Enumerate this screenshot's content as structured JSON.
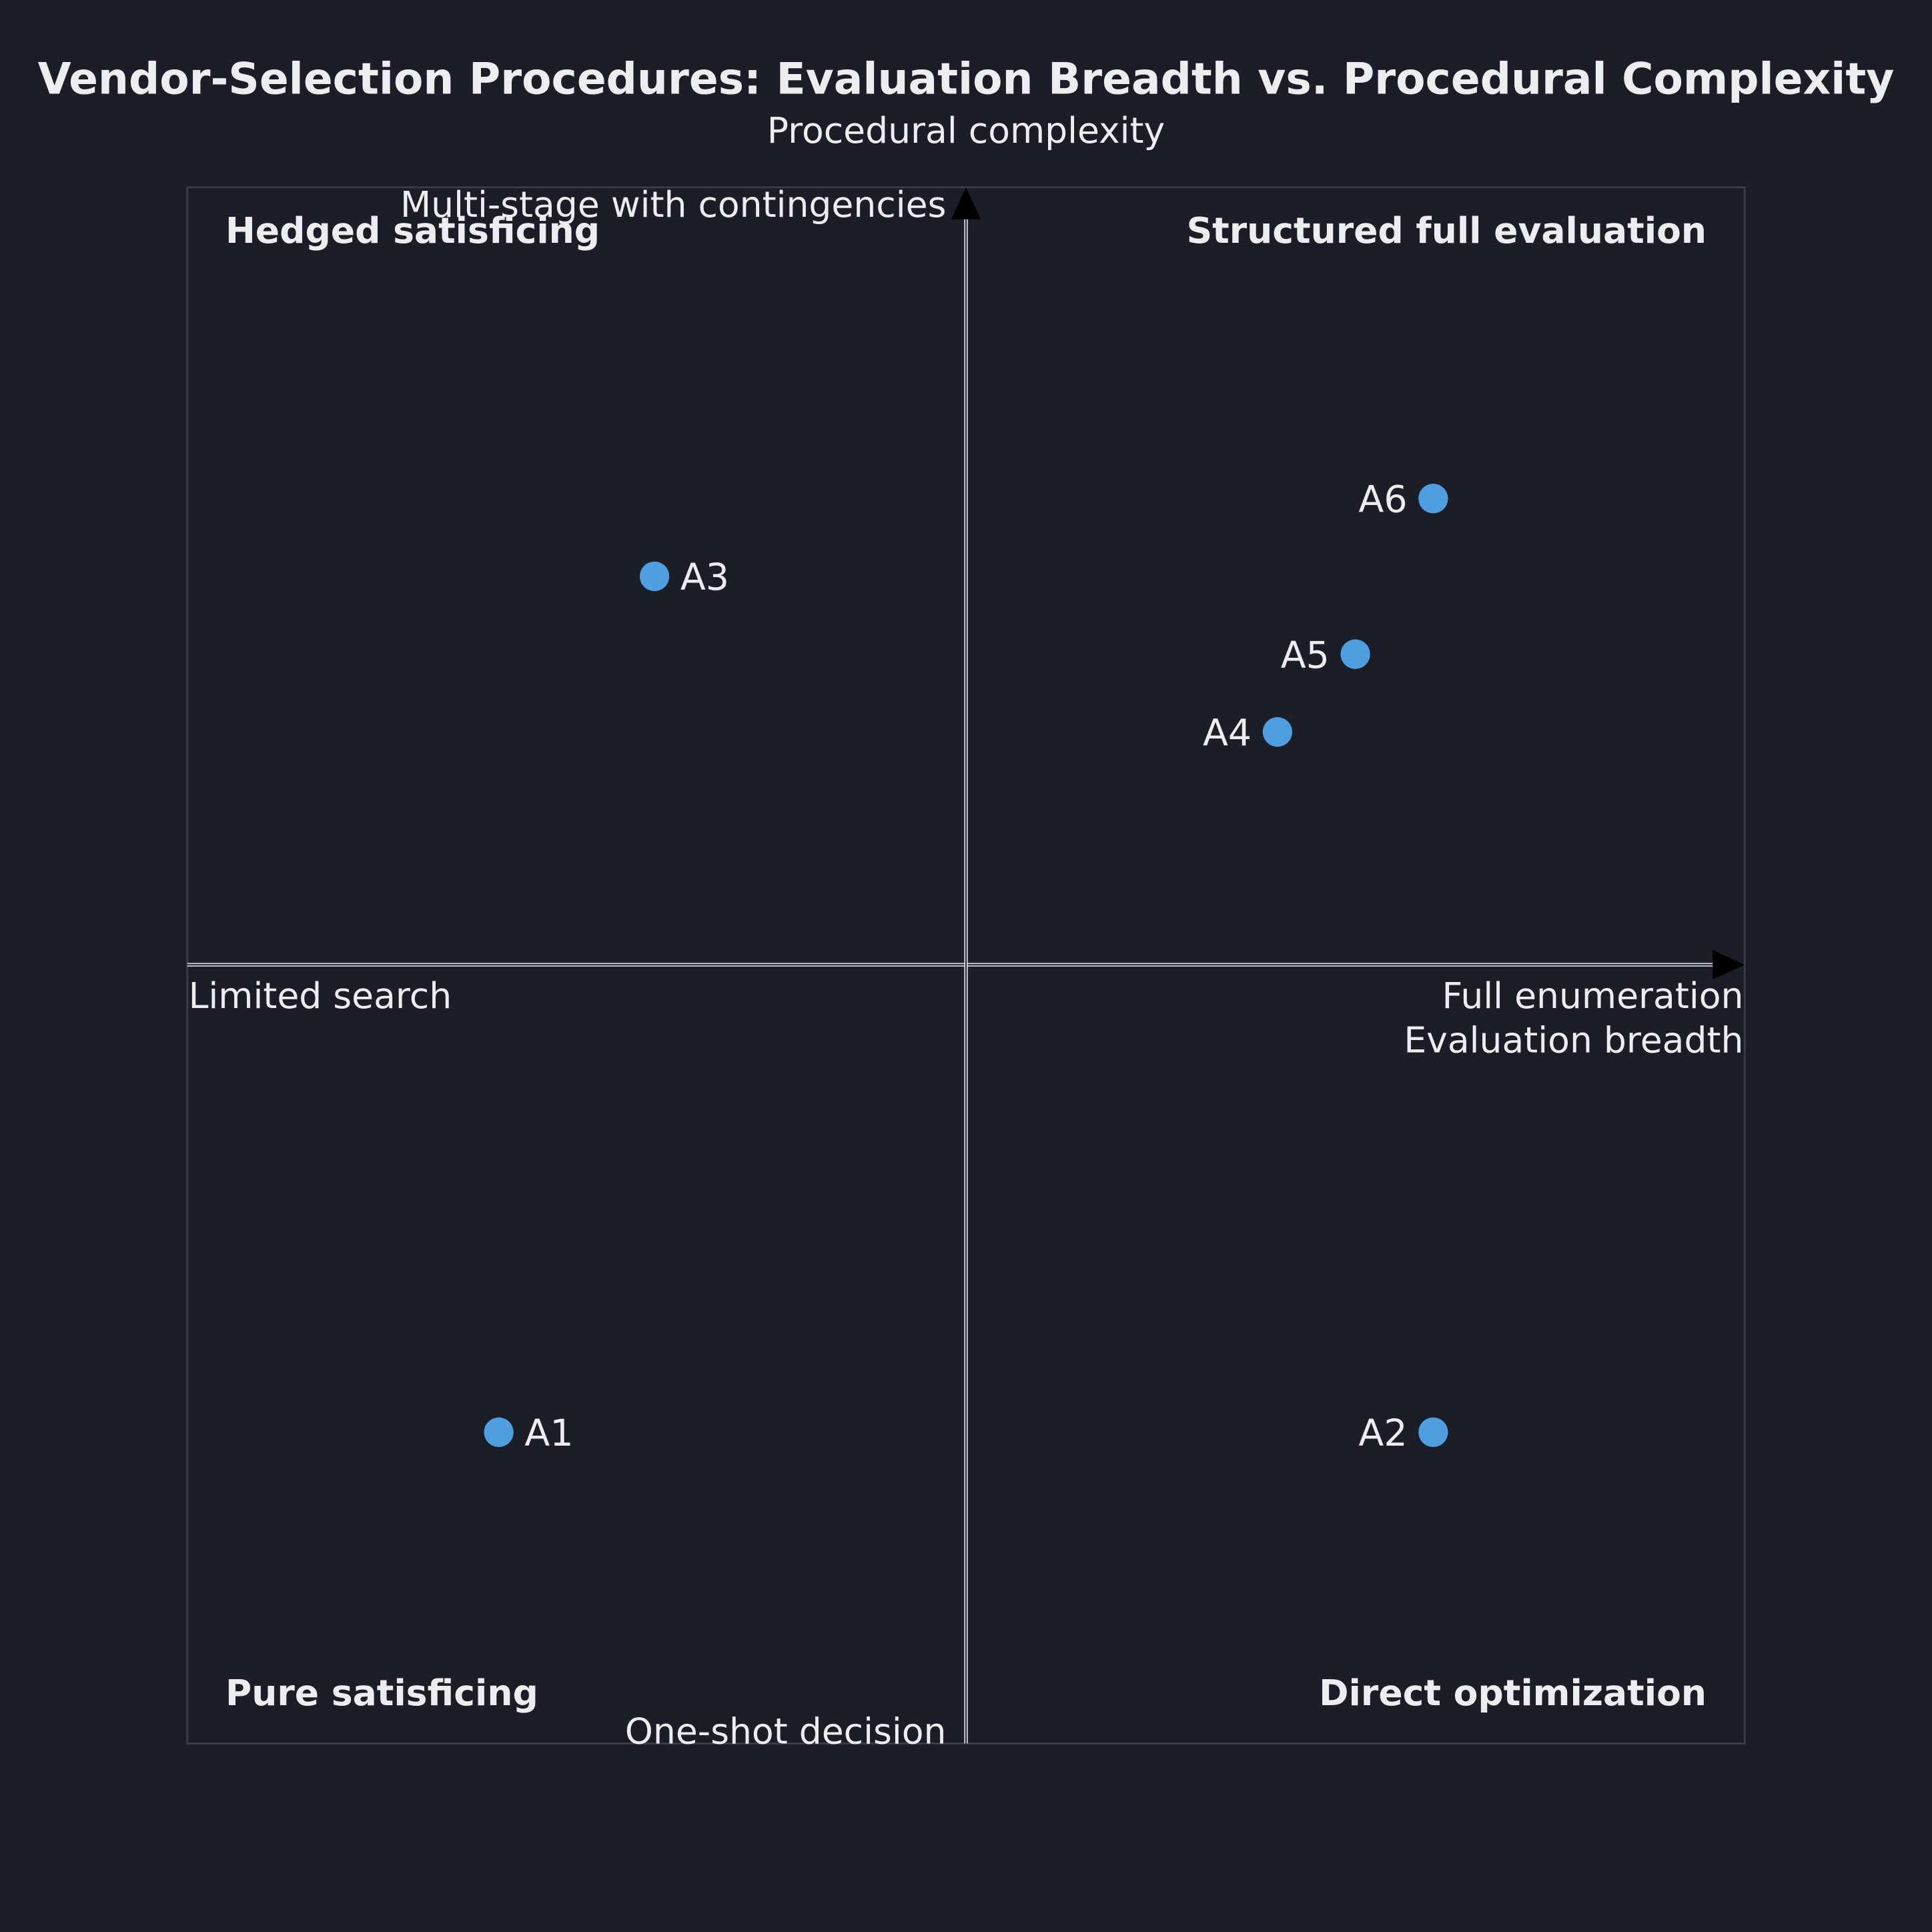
{
  "chart_data": {
    "type": "scatter",
    "title": "Vendor-Selection Procedures: Evaluation Breadth vs. Procedural Complexity",
    "xlabel": "Evaluation breadth",
    "ylabel": "Procedural complexity",
    "x_low_label": "Limited search",
    "x_high_label": "Full enumeration",
    "y_low_label": "One-shot decision",
    "y_high_label": "Multi-stage with contingencies",
    "xlim": [
      0,
      1
    ],
    "ylim": [
      0,
      1
    ],
    "grid": false,
    "quadrants": {
      "top_left": "Hedged satisficing",
      "top_right": "Structured full evaluation",
      "bottom_left": "Pure satisficing",
      "bottom_right": "Direct optimization"
    },
    "points": [
      {
        "label": "A1",
        "x": 0.2,
        "y": 0.2
      },
      {
        "label": "A2",
        "x": 0.8,
        "y": 0.2
      },
      {
        "label": "A3",
        "x": 0.3,
        "y": 0.75
      },
      {
        "label": "A4",
        "x": 0.7,
        "y": 0.65
      },
      {
        "label": "A5",
        "x": 0.75,
        "y": 0.7
      },
      {
        "label": "A6",
        "x": 0.8,
        "y": 0.8
      }
    ],
    "colors": {
      "background": "#1b1e26",
      "point": "#4f9fe0",
      "text": "#ecedf0",
      "axis": "#cfd2d8",
      "frame": "#3a3e48",
      "arrow": "#000000"
    }
  }
}
